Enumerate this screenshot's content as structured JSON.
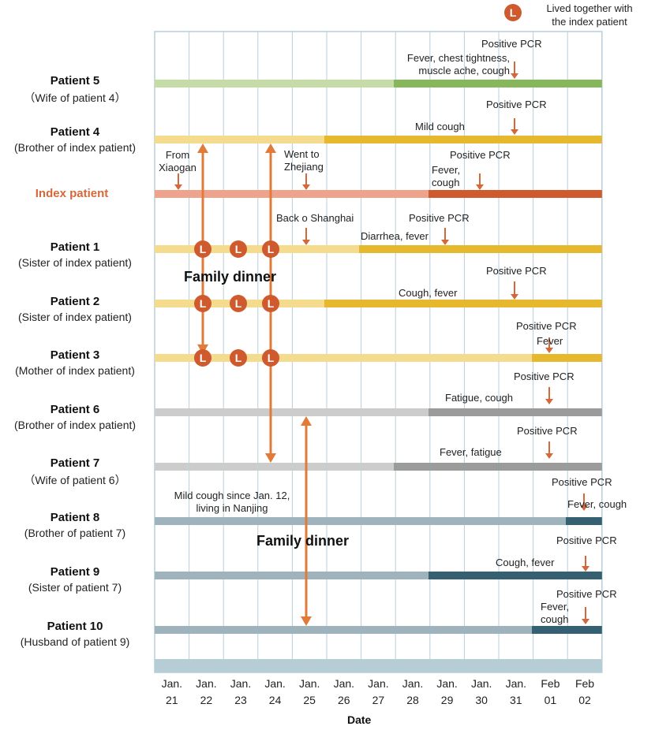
{
  "legend": {
    "badge": "L",
    "label_line1": "Lived together with",
    "label_line2": "the index patient"
  },
  "x_axis": {
    "title": "Date",
    "ticks": [
      {
        "month": "Jan.",
        "day": "21"
      },
      {
        "month": "Jan.",
        "day": "22"
      },
      {
        "month": "Jan.",
        "day": "23"
      },
      {
        "month": "Jan.",
        "day": "24"
      },
      {
        "month": "Jan.",
        "day": "25"
      },
      {
        "month": "Jan.",
        "day": "26"
      },
      {
        "month": "Jan.",
        "day": "27"
      },
      {
        "month": "Jan.",
        "day": "28"
      },
      {
        "month": "Jan.",
        "day": "29"
      },
      {
        "month": "Jan.",
        "day": "30"
      },
      {
        "month": "Jan.",
        "day": "31"
      },
      {
        "month": "Feb",
        "day": "01"
      },
      {
        "month": "Feb",
        "day": "02"
      }
    ]
  },
  "patients": [
    {
      "name": "Patient 5",
      "relation": "（Wife of patient 4）"
    },
    {
      "name": "Patient 4",
      "relation": "(Brother of index patient)"
    },
    {
      "name": "Index patient",
      "relation": ""
    },
    {
      "name": "Patient 1",
      "relation": "(Sister of index patient)"
    },
    {
      "name": "Patient 2",
      "relation": "(Sister of index patient)"
    },
    {
      "name": "Patient 3",
      "relation": "(Mother of index patient)"
    },
    {
      "name": "Patient 6",
      "relation": "(Brother of index patient)"
    },
    {
      "name": "Patient 7",
      "relation": "（Wife of patient 6）"
    },
    {
      "name": "Patient 8",
      "relation": "(Brother of patient 7)"
    },
    {
      "name": "Patient 9",
      "relation": "(Sister of patient 7)"
    },
    {
      "name": "Patient 10",
      "relation": "(Husband of patient 9)"
    }
  ],
  "annotations": {
    "p5_pcr": "Positive PCR",
    "p5_sym1": "Fever, chest tightness,",
    "p5_sym2": "muscle ache, cough",
    "p4_pcr": "Positive PCR",
    "p4_sym": "Mild cough",
    "idx_from1": "From",
    "idx_from2": "Xiaogan",
    "idx_went1": "Went to",
    "idx_went2": "Zhejiang",
    "idx_pcr": "Positive PCR",
    "idx_sym1": "Fever,",
    "idx_sym2": "cough",
    "p1_back": "Back o Shanghai",
    "p1_pcr": "Positive PCR",
    "p1_sym": "Diarrhea, fever",
    "p2_pcr": "Positive PCR",
    "p2_sym": "Cough, fever",
    "p3_pcr": "Positive PCR",
    "p3_sym": "Fever",
    "p6_pcr": "Positive PCR",
    "p6_sym": "Fatigue, cough",
    "p7_pcr": "Positive PCR",
    "p7_sym": "Fever, fatigue",
    "p8_note1": "Mild cough since Jan. 12,",
    "p8_note2": "living in Nanjing",
    "p8_pcr": "Positive PCR",
    "p8_sym": "Fever, cough",
    "p9_pcr": "Positive PCR",
    "p9_sym": "Cough, fever",
    "p10_pcr": "Positive PCR",
    "p10_sym1": "Fever,",
    "p10_sym2": "cough",
    "family_dinner_1": "Family dinner",
    "family_dinner_2": "Family dinner"
  },
  "colors": {
    "p5_light": "#c5dca6",
    "p5_dark": "#86b75a",
    "yellow_light": "#f5db8e",
    "yellow_dark": "#e6b82e",
    "idx_light": "#eea48c",
    "idx_dark": "#cf5a2e",
    "gray_light": "#cccccc",
    "gray_dark": "#9b9b9b",
    "blue_light": "#9fb3bd",
    "blue_dark": "#346071",
    "arrow": "#e07b39",
    "grid": "#b7cfd8",
    "footer": "#b6cdd6",
    "badge": "#cf5a2e"
  }
}
